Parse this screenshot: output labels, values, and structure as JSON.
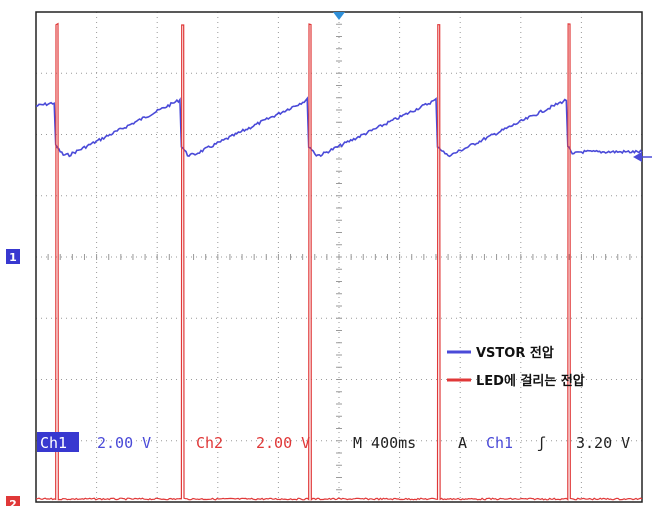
{
  "chart_data": {
    "type": "line",
    "x_unit": "ms",
    "x_range": [
      -2000,
      2000
    ],
    "divisions": {
      "x": 10,
      "y": 8
    },
    "grid": true,
    "legend_position": "bottom-right",
    "series": [
      {
        "name": "VSTOR 전압",
        "channel": "Ch1",
        "color": "#4a4ad8",
        "volts_per_div": 2.0,
        "x": [
          -2000,
          -1880,
          -1870,
          -1820,
          -1780,
          -1050,
          -1040,
          -1000,
          -960,
          -210,
          -200,
          -150,
          -120,
          640,
          650,
          710,
          740,
          1500,
          1510,
          1540,
          1580,
          2000
        ],
        "y": [
          4.9,
          5.0,
          3.6,
          3.3,
          3.3,
          5.1,
          3.6,
          3.3,
          3.3,
          5.1,
          3.6,
          3.3,
          3.3,
          5.1,
          3.6,
          3.3,
          3.3,
          5.1,
          3.6,
          3.3,
          3.4,
          3.4
        ]
      },
      {
        "name": "LED에 걸리는 전압",
        "channel": "Ch2",
        "color": "#e03838",
        "volts_per_div": 2.0,
        "x": [
          -2000,
          -1870,
          -1868,
          -1855,
          -1853,
          -1040,
          -1038,
          -1025,
          -1023,
          -200,
          -198,
          -185,
          -183,
          650,
          652,
          665,
          667,
          1510,
          1512,
          1525,
          1527,
          2000
        ],
        "y": [
          0,
          0,
          15.5,
          15.5,
          0,
          0,
          15.5,
          15.5,
          0,
          0,
          15.5,
          15.5,
          0,
          0,
          15.5,
          15.5,
          0,
          0,
          15.5,
          15.5,
          0,
          0
        ]
      }
    ],
    "markers": {
      "ch1": "1",
      "ch2": "2"
    },
    "trigger": {
      "channel": "Ch1",
      "level_v": 3.2,
      "slope": "rising"
    }
  },
  "status": {
    "ch1_label": "Ch1",
    "ch1_scale": "2.00 V",
    "ch2_label": "Ch2",
    "ch2_scale": "2.00 V",
    "timebase": "M 400ms",
    "trigger_mode": "A",
    "trigger_source": "Ch1",
    "trigger_slope": "ʃ",
    "trigger_level": "3.20 V"
  },
  "colors": {
    "grid": "#9a9a9a",
    "frame": "#222222",
    "ch1": "#4a4ad8",
    "ch2": "#e03838",
    "trigger_marker": "#2f8fd8"
  }
}
